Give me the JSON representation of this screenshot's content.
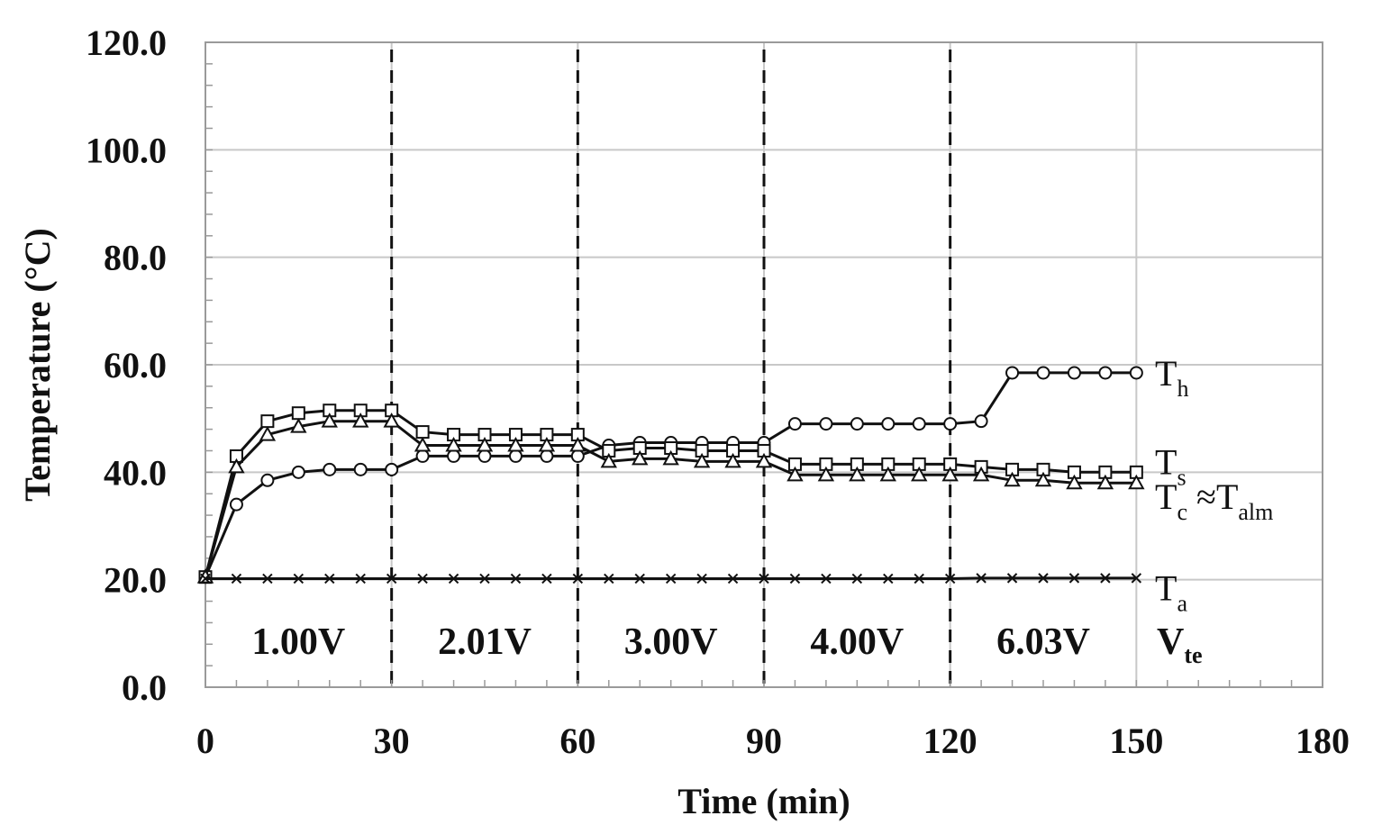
{
  "chart_data": {
    "type": "line",
    "title": "",
    "xlabel": "Time (min)",
    "ylabel": "Temperature (°C)",
    "xlim": [
      0,
      180
    ],
    "ylim": [
      0,
      120
    ],
    "x_ticks": [
      "0",
      "30",
      "60",
      "90",
      "120",
      "150",
      "180"
    ],
    "y_ticks": [
      "0.0",
      "20.0",
      "40.0",
      "60.0",
      "80.0",
      "100.0",
      "120.0"
    ],
    "grid": true,
    "legend": "inline-right",
    "x": [
      0,
      5,
      10,
      15,
      20,
      25,
      30,
      35,
      40,
      45,
      50,
      55,
      60,
      65,
      70,
      75,
      80,
      85,
      90,
      95,
      100,
      105,
      110,
      115,
      120,
      125,
      130,
      135,
      140,
      145,
      150
    ],
    "series": [
      {
        "name": "Th",
        "label_main": "T",
        "label_sub": "h",
        "marker": "circle",
        "values": [
          20.5,
          34.0,
          38.5,
          40.0,
          40.5,
          40.5,
          40.5,
          43.0,
          43.0,
          43.0,
          43.0,
          43.0,
          43.0,
          45.0,
          45.5,
          45.5,
          45.5,
          45.5,
          45.5,
          49.0,
          49.0,
          49.0,
          49.0,
          49.0,
          49.0,
          49.5,
          58.5,
          58.5,
          58.5,
          58.5,
          58.5
        ]
      },
      {
        "name": "Ts",
        "label_main": "T",
        "label_sub": "s",
        "marker": "square",
        "values": [
          20.5,
          43.0,
          49.5,
          51.0,
          51.5,
          51.5,
          51.5,
          47.5,
          47.0,
          47.0,
          47.0,
          47.0,
          47.0,
          44.0,
          44.5,
          44.5,
          44.0,
          44.0,
          44.0,
          41.5,
          41.5,
          41.5,
          41.5,
          41.5,
          41.5,
          41.0,
          40.5,
          40.5,
          40.0,
          40.0,
          40.0
        ]
      },
      {
        "name": "Tc",
        "label_main": "T",
        "label_sub": "c",
        "label_suffix": " ≈T",
        "label_suffix_sub": "alm",
        "marker": "triangle",
        "values": [
          20.5,
          41.0,
          47.0,
          48.5,
          49.5,
          49.5,
          49.5,
          45.0,
          45.0,
          45.0,
          45.0,
          45.0,
          45.0,
          42.0,
          42.5,
          42.5,
          42.0,
          42.0,
          42.0,
          39.5,
          39.5,
          39.5,
          39.5,
          39.5,
          39.5,
          39.5,
          38.5,
          38.5,
          38.0,
          38.0,
          38.0
        ]
      },
      {
        "name": "Ta",
        "label_main": "T",
        "label_sub": "a",
        "marker": "x",
        "values": [
          20.2,
          20.2,
          20.2,
          20.2,
          20.2,
          20.2,
          20.2,
          20.2,
          20.2,
          20.2,
          20.2,
          20.2,
          20.2,
          20.2,
          20.2,
          20.2,
          20.2,
          20.2,
          20.2,
          20.2,
          20.2,
          20.2,
          20.2,
          20.2,
          20.2,
          20.3,
          20.3,
          20.3,
          20.3,
          20.3,
          20.3
        ]
      }
    ],
    "phase_dividers": [
      30,
      60,
      90,
      120
    ],
    "phase_voltages": [
      {
        "label": "1.00V",
        "x": 15
      },
      {
        "label": "2.01V",
        "x": 45
      },
      {
        "label": "3.00V",
        "x": 75
      },
      {
        "label": "4.00V",
        "x": 105
      },
      {
        "label": "6.03V",
        "x": 135
      }
    ],
    "voltage_axis_label": {
      "main": "V",
      "sub": "te"
    }
  }
}
